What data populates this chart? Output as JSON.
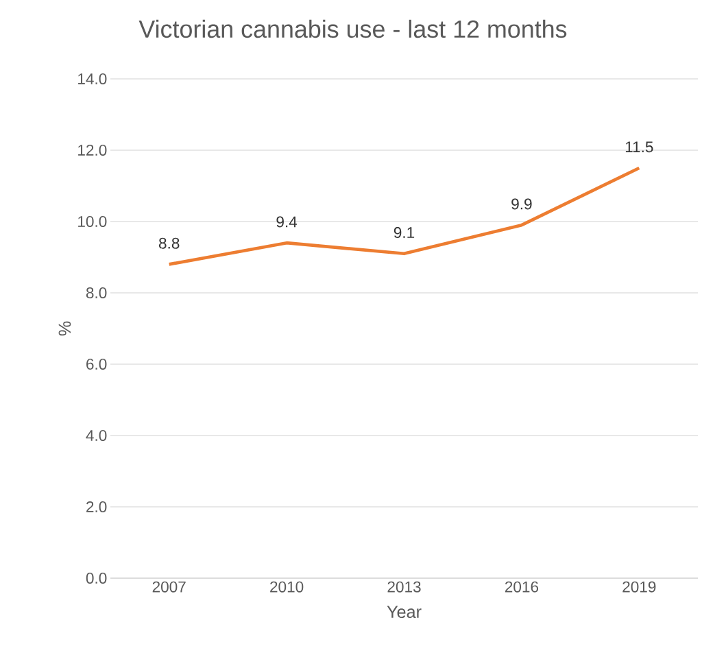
{
  "chart_data": {
    "type": "line",
    "title": "Victorian cannabis use - last 12 months",
    "xlabel": "Year",
    "ylabel": "%",
    "categories": [
      "2007",
      "2010",
      "2013",
      "2016",
      "2019"
    ],
    "series": [
      {
        "color": "#ed7d31",
        "values": [
          8.8,
          9.4,
          9.1,
          9.9,
          11.5
        ]
      }
    ],
    "data_labels": true,
    "ylim": [
      0,
      14
    ],
    "yticks": [
      {
        "value": 0,
        "label": "0.0"
      },
      {
        "value": 2,
        "label": "2.0"
      },
      {
        "value": 4,
        "label": "4.0"
      },
      {
        "value": 6,
        "label": "6.0"
      },
      {
        "value": 8,
        "label": "8.0"
      },
      {
        "value": 10,
        "label": "10.0"
      },
      {
        "value": 12,
        "label": "12.0"
      },
      {
        "value": 14,
        "label": "14.0"
      }
    ],
    "grid": "y",
    "marker": "none",
    "line_style": "solid"
  }
}
